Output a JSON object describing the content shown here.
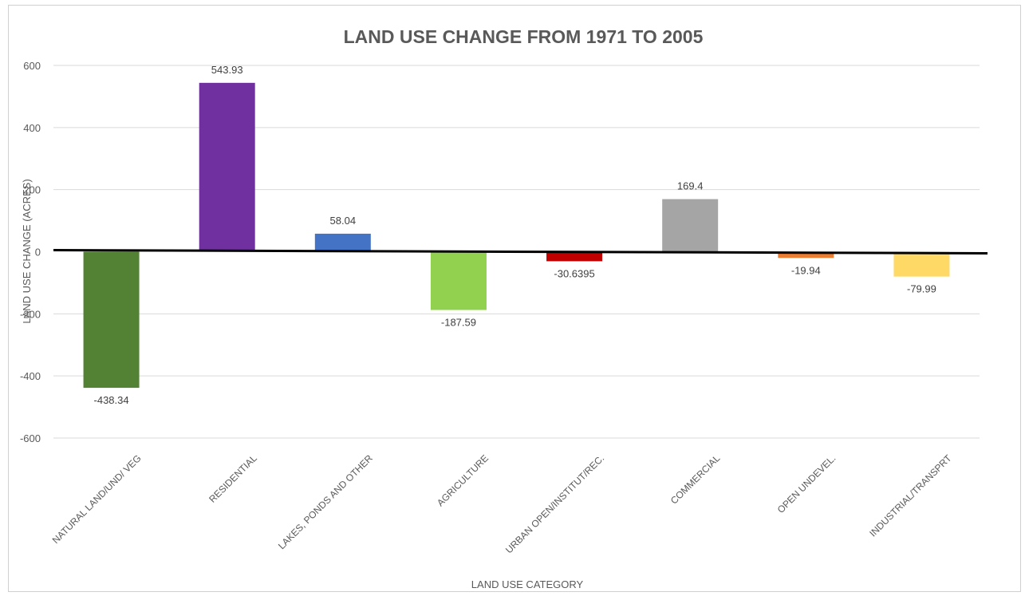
{
  "chart_data": {
    "type": "bar",
    "title": "LAND USE CHANGE FROM 1971 TO 2005",
    "xlabel": "LAND USE CATEGORY",
    "ylabel": "LAND USE CHANGE (ACRES)",
    "ylim": [
      -600,
      600
    ],
    "yticks": [
      600,
      400,
      200,
      0,
      -200,
      -400,
      -600
    ],
    "ytick_labels": [
      "600",
      "400",
      "200",
      "0",
      "-200",
      "-400",
      "-600"
    ],
    "grid": true,
    "legend": "none",
    "categories": [
      "NATURAL LAND/UND/ VEG",
      "RESIDENTIAL",
      "LAKES, PONDS AND OTHER",
      "AGRICULTURE",
      "URBAN OPEN/INSTITUT/REC.",
      "COMMERCIAL",
      "OPEN UNDEVEL.",
      "INDUSTRIAL/TRANSPRT"
    ],
    "values": [
      -438.34,
      543.93,
      58.04,
      -187.59,
      -30.6395,
      169.4,
      -19.94,
      -79.99
    ],
    "value_labels": [
      "-438.34",
      "543.93",
      "58.04",
      "-187.59",
      "-30.6395",
      "169.4",
      "-19.94",
      "-79.99"
    ],
    "colors": [
      "#548235",
      "#7030a0",
      "#4472c4",
      "#92d050",
      "#c00000",
      "#a5a5a5",
      "#ed7d31",
      "#ffd966"
    ]
  }
}
